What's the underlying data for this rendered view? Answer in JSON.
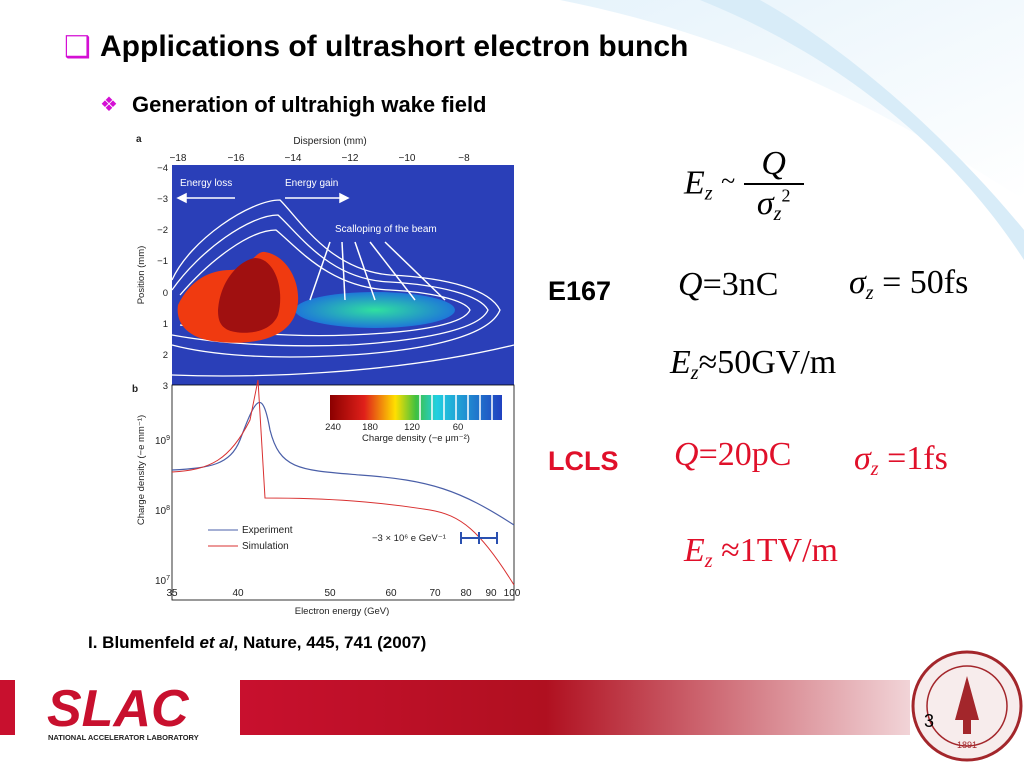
{
  "header": {
    "bullet": "❑",
    "title": "Applications of ultrashort electron bunch",
    "sub_bullet": "❖",
    "subtitle": "Generation of ultrahigh wake field"
  },
  "figure_a": {
    "panel": "a",
    "x_label": "Dispersion (mm)",
    "x_ticks": [
      "−18",
      "−16",
      "−14",
      "−12",
      "−10",
      "−8"
    ],
    "y_label": "Position (mm)",
    "y_ticks": [
      "−4",
      "−3",
      "−2",
      "−1",
      "0",
      "1",
      "2",
      "3"
    ],
    "annotations": [
      "Energy loss",
      "Energy gain",
      "Scalloping of the beam"
    ]
  },
  "colorbar": {
    "ticks": [
      "240",
      "180",
      "120",
      "60"
    ],
    "label": "Charge density (−e μm⁻²)"
  },
  "figure_b": {
    "panel": "b",
    "y_label": "Charge density (−e mm⁻¹)",
    "y_ticks": [
      {
        "base": "10",
        "exp": "9"
      },
      {
        "base": "10",
        "exp": "8"
      },
      {
        "base": "10",
        "exp": "7"
      }
    ],
    "x_ticks": [
      "35",
      "40",
      "50",
      "60",
      "70",
      "80",
      "90",
      "100"
    ],
    "x_label": "Electron energy (GeV)",
    "legend": [
      "Experiment",
      "Simulation"
    ],
    "annotation": "−3 × 10⁶ e GeV⁻¹"
  },
  "equations": {
    "scaling": {
      "lhs": "E",
      "lhs_sub": "z",
      "rel": "~",
      "num": "Q",
      "den": "σ",
      "den_sub": "z",
      "den_exp": "2"
    },
    "e167": {
      "label": "E167",
      "q": {
        "lhs": "Q",
        "rel": "=",
        "rhs": "3nC"
      },
      "sigma": {
        "lhs": "σ",
        "sub": "z",
        "rel": "=",
        "rhs": "50fs"
      },
      "field": {
        "lhs": "E",
        "sub": "z",
        "rel": "≈",
        "rhs": "50GV/m"
      }
    },
    "lcls": {
      "label": "LCLS",
      "q": {
        "lhs": "Q",
        "rel": "=",
        "rhs": "20pC"
      },
      "sigma": {
        "lhs": "σ",
        "sub": "z",
        "rel": "=",
        "rhs": "1fs"
      },
      "field": {
        "lhs": "E",
        "sub": "z",
        "rel": "≈",
        "rhs": "1TV/m"
      }
    }
  },
  "citation": {
    "authors": "I. Blumenfeld ",
    "etal": "et al",
    "rest": ", Nature, 445,  741 (2007)"
  },
  "footer": {
    "logo": "SLAC",
    "lab": "NATIONAL ACCELERATOR LABORATORY",
    "page": "3",
    "seal_year": "1891"
  }
}
